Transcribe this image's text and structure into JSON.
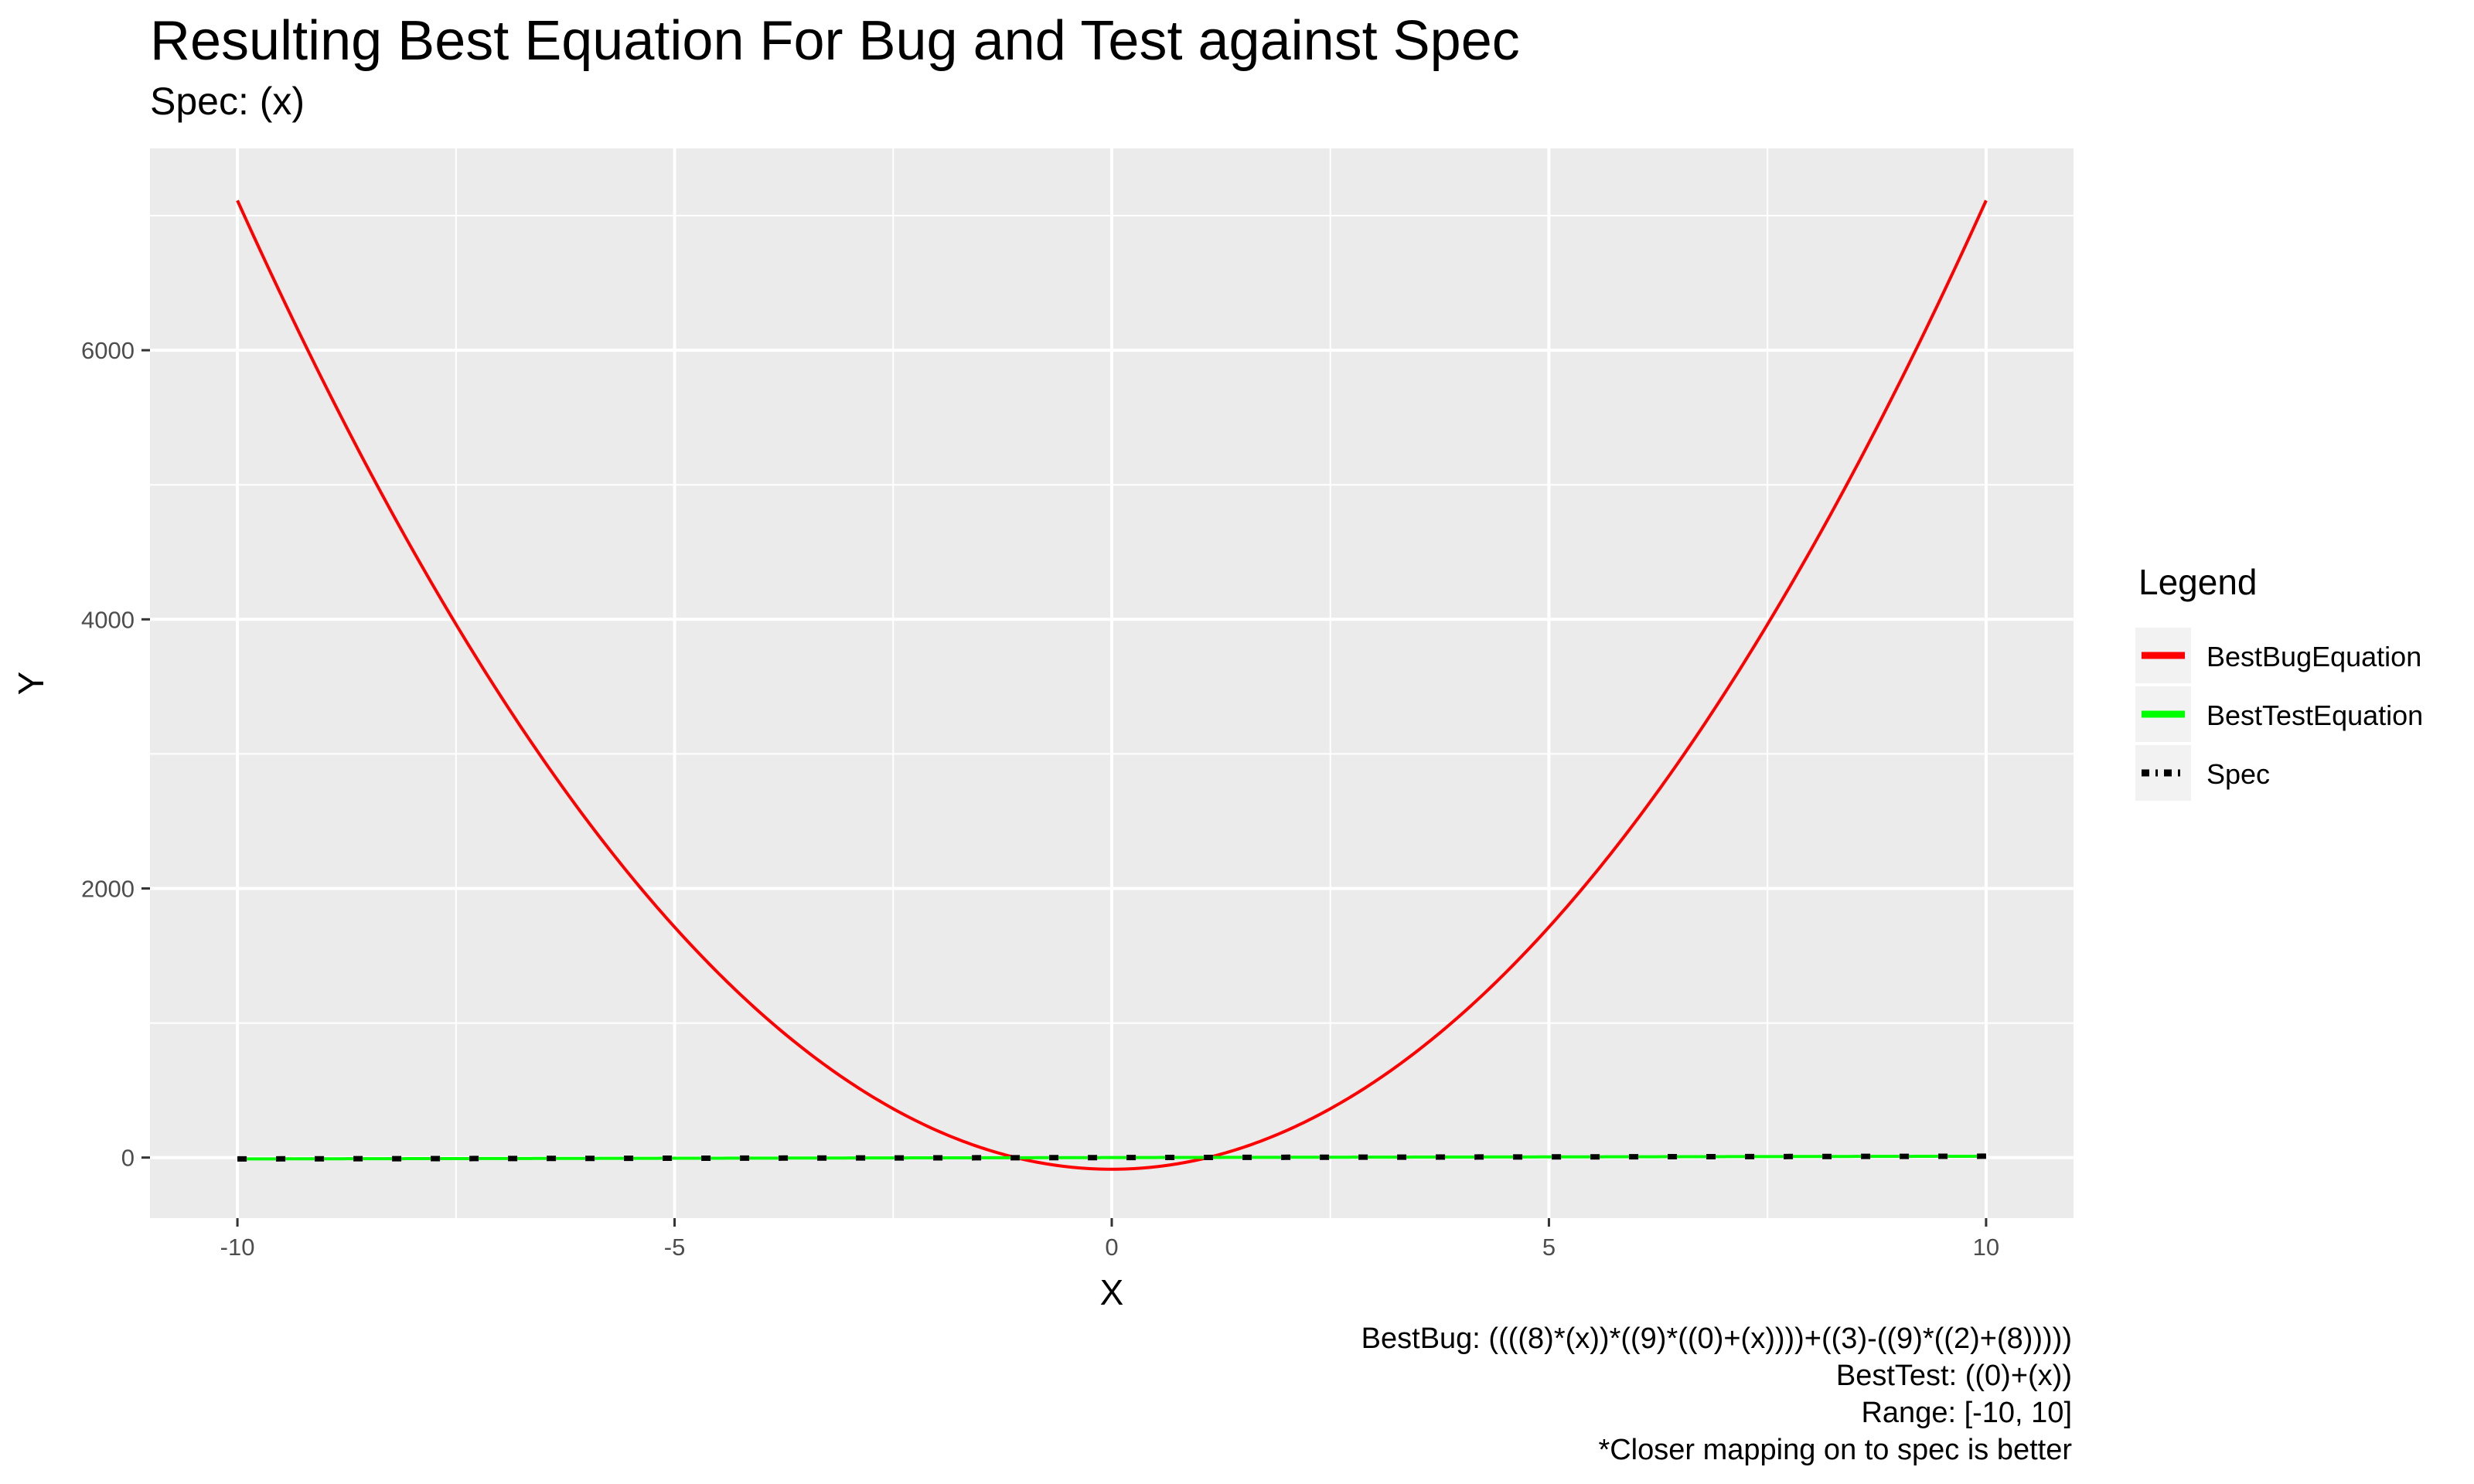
{
  "title": "Resulting Best Equation For Bug and Test against Spec",
  "subtitle": "Spec: (x)",
  "legend": {
    "title": "Legend",
    "items": [
      {
        "label": "BestBugEquation",
        "color": "#ff0000",
        "style": "solid"
      },
      {
        "label": "BestTestEquation",
        "color": "#00ff00",
        "style": "solid"
      },
      {
        "label": "Spec",
        "color": "#000000",
        "style": "dotted"
      }
    ]
  },
  "caption": {
    "lines": [
      "BestBug: ((((8)*(x))*((9)*((0)+(x))))+((3)-((9)*((2)+(8)))))",
      "BestTest: ((0)+(x))",
      "Range: [-10, 10]",
      "*Closer mapping on to spec is better"
    ]
  },
  "chart_data": {
    "type": "line",
    "title": "Resulting Best Equation For Bug and Test against Spec",
    "subtitle": "Spec: (x)",
    "xlabel": "X",
    "ylabel": "Y",
    "xlim": [
      -11,
      11
    ],
    "ylim": [
      -450,
      7500
    ],
    "x_ticks": [
      -10,
      -5,
      0,
      5,
      10
    ],
    "x_tick_labels": [
      "-10",
      "-5",
      "0",
      "5",
      "10"
    ],
    "y_ticks": [
      0,
      2000,
      4000,
      6000
    ],
    "y_tick_labels": [
      "0",
      "2000",
      "4000",
      "6000"
    ],
    "grid": true,
    "legend_position": "right",
    "x": [
      -10,
      -9,
      -8,
      -7,
      -6,
      -5,
      -4,
      -3,
      -2,
      -1,
      0,
      1,
      2,
      3,
      4,
      5,
      6,
      7,
      8,
      9,
      10
    ],
    "series": [
      {
        "name": "BestBugEquation",
        "color": "#ff0000",
        "style": "solid",
        "values": [
          7113,
          5745,
          4521,
          3441,
          2505,
          1713,
          1065,
          561,
          201,
          -15,
          -87,
          -15,
          201,
          561,
          1065,
          1713,
          2505,
          3441,
          4521,
          5745,
          7113
        ]
      },
      {
        "name": "BestTestEquation",
        "color": "#00ff00",
        "style": "solid",
        "values": [
          -10,
          -9,
          -8,
          -7,
          -6,
          -5,
          -4,
          -3,
          -2,
          -1,
          0,
          1,
          2,
          3,
          4,
          5,
          6,
          7,
          8,
          9,
          10
        ]
      },
      {
        "name": "Spec",
        "color": "#000000",
        "style": "dotted",
        "values": [
          -10,
          -9,
          -8,
          -7,
          -6,
          -5,
          -4,
          -3,
          -2,
          -1,
          0,
          1,
          2,
          3,
          4,
          5,
          6,
          7,
          8,
          9,
          10
        ]
      }
    ]
  }
}
